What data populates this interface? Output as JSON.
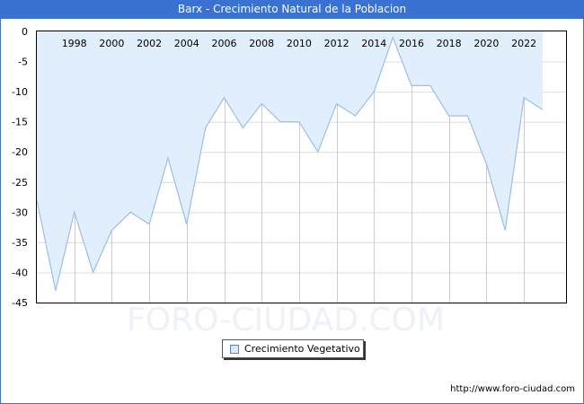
{
  "window": {
    "title": "Barx - Crecimiento Natural de la Poblacion",
    "title_bar_color": "#3a72d4"
  },
  "watermark": "FORO-CIUDAD.COM",
  "legend": {
    "items": [
      {
        "label": "Crecimiento Vegetativo",
        "color": "#dde9fb"
      }
    ]
  },
  "footer": {
    "url": "http://www.foro-ciudad.com"
  },
  "chart_data": {
    "type": "area",
    "title": "Barx - Crecimiento Natural de la Poblacion",
    "xlabel": "",
    "ylabel": "",
    "x": [
      1996,
      1997,
      1998,
      1999,
      2000,
      2001,
      2002,
      2003,
      2004,
      2005,
      2006,
      2007,
      2008,
      2009,
      2010,
      2011,
      2012,
      2013,
      2014,
      2015,
      2016,
      2017,
      2018,
      2019,
      2020,
      2021,
      2022,
      2023
    ],
    "series": [
      {
        "name": "Crecimiento Vegetativo",
        "values": [
          -28,
          -43,
          -30,
          -40,
          -33,
          -30,
          -32,
          -21,
          -32,
          -16,
          -11,
          -16,
          -12,
          -15,
          -15,
          -20,
          -12,
          -14,
          -10,
          -1,
          -9,
          -9,
          -14,
          -14,
          -22,
          -33,
          -11,
          -13
        ],
        "line_color": "#9dbde8",
        "fill_color": "#e1effc"
      }
    ],
    "x_tick_labels": [
      "1998",
      "2000",
      "2002",
      "2004",
      "2006",
      "2008",
      "2010",
      "2012",
      "2014",
      "2016",
      "2018",
      "2020",
      "2022"
    ],
    "y_tick_labels": [
      "0",
      "-5",
      "-10",
      "-15",
      "-20",
      "-25",
      "-30",
      "-35",
      "-40",
      "-45"
    ],
    "ylim": [
      -45,
      0
    ],
    "xlim": [
      1996,
      2025
    ],
    "grid": true,
    "fill_to": 0,
    "legend_position": "bottom-center"
  }
}
